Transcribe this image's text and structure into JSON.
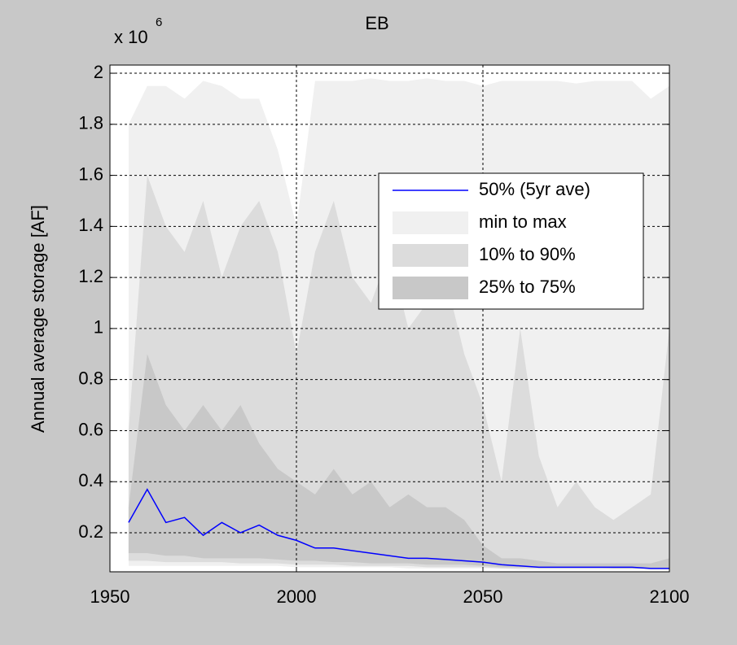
{
  "chart_data": {
    "type": "band-line",
    "title": "EB",
    "ylabel": "Annual average storage [AF]",
    "y_multiplier": {
      "base": "x 10",
      "exponent": "6"
    },
    "x": [
      1955,
      1960,
      1965,
      1970,
      1975,
      1980,
      1985,
      1990,
      1995,
      2000,
      2005,
      2010,
      2015,
      2020,
      2025,
      2030,
      2035,
      2040,
      2045,
      2050,
      2055,
      2060,
      2065,
      2070,
      2075,
      2080,
      2085,
      2090,
      2095,
      2100
    ],
    "xlim": [
      1950,
      2100
    ],
    "xticks": [
      1950,
      2000,
      2050,
      2100
    ],
    "ylim": [
      0.047,
      2.032
    ],
    "yticks": [
      0.2,
      0.4,
      0.6,
      0.8,
      1,
      1.2,
      1.4,
      1.6,
      1.8,
      2
    ],
    "grid": true,
    "legend": "upper right",
    "bands": [
      {
        "name": "min to max",
        "color": "#f0f0f0",
        "lower": [
          0.07,
          0.07,
          0.07,
          0.07,
          0.07,
          0.07,
          0.07,
          0.07,
          0.07,
          0.065,
          0.065,
          0.065,
          0.065,
          0.065,
          0.065,
          0.06,
          0.06,
          0.06,
          0.06,
          0.06,
          0.06,
          0.055,
          0.055,
          0.055,
          0.055,
          0.055,
          0.055,
          0.055,
          0.055,
          0.055
        ],
        "upper": [
          1.8,
          1.95,
          1.95,
          1.9,
          1.97,
          1.95,
          1.9,
          1.9,
          1.7,
          1.4,
          1.97,
          1.97,
          1.97,
          1.98,
          1.97,
          1.97,
          1.98,
          1.97,
          1.97,
          1.95,
          1.97,
          1.97,
          1.97,
          1.97,
          1.96,
          1.97,
          1.97,
          1.97,
          1.9,
          1.95
        ]
      },
      {
        "name": "10% to 90%",
        "color": "#dcdcdc",
        "lower": [
          0.09,
          0.09,
          0.085,
          0.085,
          0.085,
          0.085,
          0.08,
          0.08,
          0.08,
          0.075,
          0.075,
          0.075,
          0.07,
          0.07,
          0.07,
          0.07,
          0.065,
          0.065,
          0.065,
          0.065,
          0.06,
          0.06,
          0.06,
          0.06,
          0.06,
          0.06,
          0.06,
          0.06,
          0.06,
          0.06
        ],
        "upper": [
          0.6,
          1.6,
          1.4,
          1.3,
          1.5,
          1.2,
          1.4,
          1.5,
          1.3,
          0.9,
          1.3,
          1.5,
          1.2,
          1.1,
          1.3,
          1.0,
          1.1,
          1.2,
          0.9,
          0.7,
          0.4,
          1.0,
          0.5,
          0.3,
          0.4,
          0.3,
          0.25,
          0.3,
          0.35,
          1.0
        ]
      },
      {
        "name": "25% to 75%",
        "color": "#c8c8c8",
        "lower": [
          0.12,
          0.12,
          0.11,
          0.11,
          0.1,
          0.1,
          0.1,
          0.1,
          0.095,
          0.09,
          0.09,
          0.085,
          0.085,
          0.08,
          0.08,
          0.08,
          0.075,
          0.075,
          0.075,
          0.07,
          0.065,
          0.065,
          0.065,
          0.065,
          0.065,
          0.065,
          0.06,
          0.06,
          0.06,
          0.06
        ],
        "upper": [
          0.3,
          0.9,
          0.7,
          0.6,
          0.7,
          0.6,
          0.7,
          0.55,
          0.45,
          0.4,
          0.35,
          0.45,
          0.35,
          0.4,
          0.3,
          0.35,
          0.3,
          0.3,
          0.25,
          0.15,
          0.1,
          0.1,
          0.09,
          0.08,
          0.08,
          0.08,
          0.08,
          0.08,
          0.08,
          0.1
        ]
      }
    ],
    "series": [
      {
        "name": "50% (5yr ave)",
        "color": "#0000ff",
        "values": [
          0.24,
          0.37,
          0.24,
          0.26,
          0.19,
          0.24,
          0.2,
          0.23,
          0.19,
          0.17,
          0.14,
          0.14,
          0.13,
          0.12,
          0.11,
          0.1,
          0.1,
          0.095,
          0.09,
          0.085,
          0.075,
          0.07,
          0.065,
          0.065,
          0.065,
          0.065,
          0.065,
          0.065,
          0.06,
          0.06
        ]
      }
    ]
  }
}
